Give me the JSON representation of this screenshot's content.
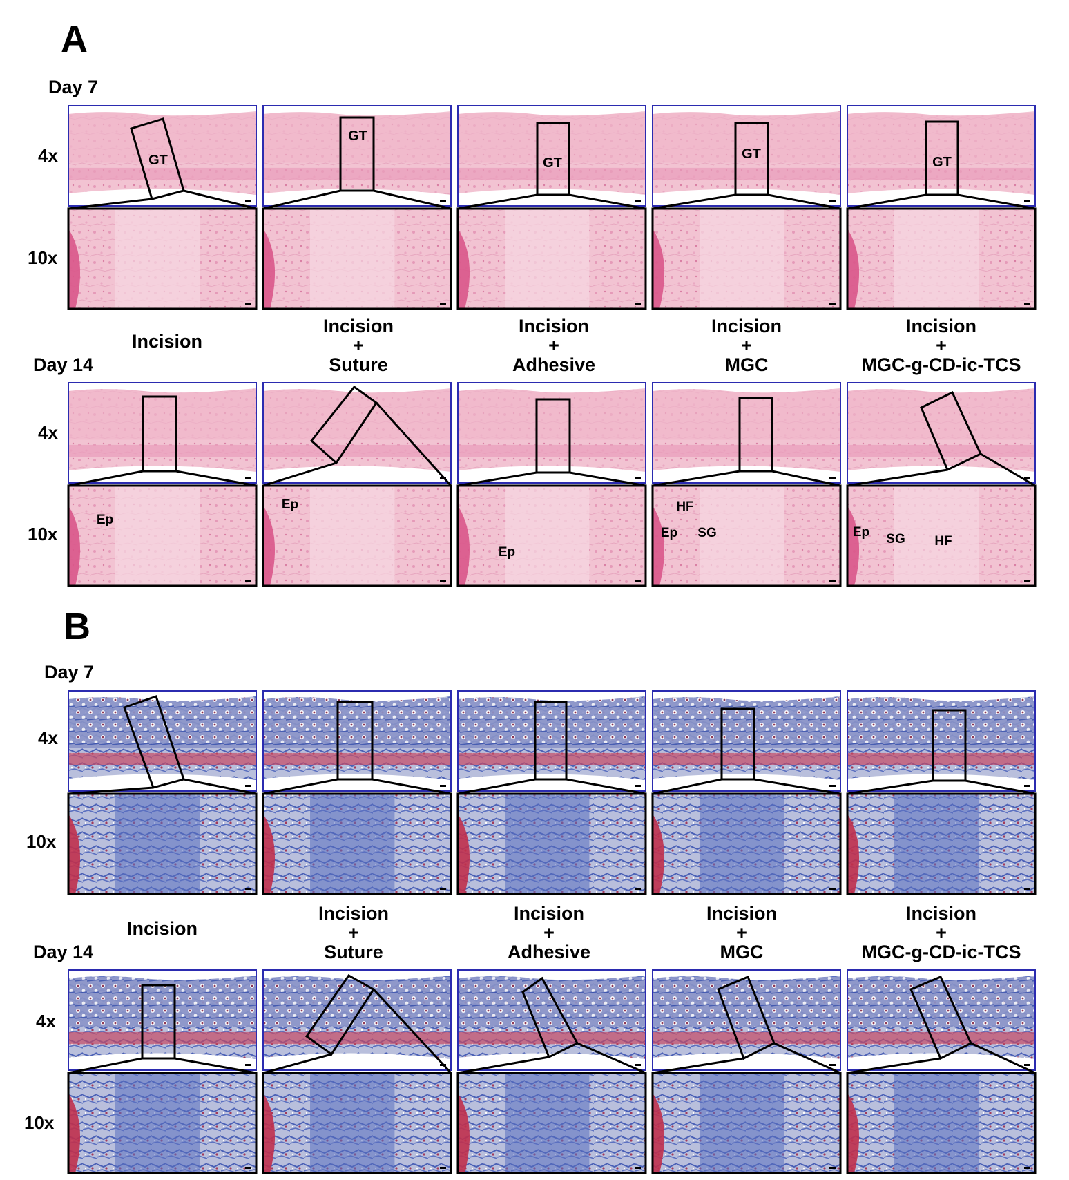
{
  "panels": [
    {
      "letter": "A",
      "stain": "he",
      "day7": "Day 7",
      "day14": "Day 14",
      "mag_low": "4x",
      "mag_high": "10x",
      "groups": [
        {
          "line1": "Incision",
          "line2": "",
          "line3": ""
        },
        {
          "line1": "Incision",
          "line2": "+",
          "line3": "Suture"
        },
        {
          "line1": "Incision",
          "line2": "+",
          "line3": "Adhesive"
        },
        {
          "line1": "Incision",
          "line2": "+",
          "line3": "MGC"
        },
        {
          "line1": "Incision",
          "line2": "+",
          "line3": "MGC-g-CD-ic-TCS"
        }
      ],
      "labels_day7_4x": [
        "GT",
        "GT",
        "GT",
        "GT",
        "GT"
      ],
      "labels_day14_10x": [
        [
          "Ep"
        ],
        [
          "Ep"
        ],
        [
          "Ep"
        ],
        [
          "HF",
          "Ep",
          "SG"
        ],
        [
          "Ep",
          "SG",
          "HF"
        ]
      ]
    },
    {
      "letter": "B",
      "stain": "mt",
      "day7": "Day 7",
      "day14": "Day 14",
      "mag_low": "4x",
      "mag_high": "10x",
      "groups": [
        {
          "line1": "Incision",
          "line2": "",
          "line3": ""
        },
        {
          "line1": "Incision",
          "line2": "+",
          "line3": "Suture"
        },
        {
          "line1": "Incision",
          "line2": "+",
          "line3": "Adhesive"
        },
        {
          "line1": "Incision",
          "line2": "+",
          "line3": "MGC"
        },
        {
          "line1": "Incision",
          "line2": "+",
          "line3": "MGC-g-CD-ic-TCS"
        }
      ]
    }
  ],
  "colors": {
    "frame_low": "#2b2bb0",
    "frame_high": "#000000",
    "he_bg": "#f2c3d2",
    "he_dark": "#d9568a",
    "mt_bg": "#c9cde0",
    "mt_blue": "#3f57b0",
    "mt_red": "#c0304c"
  }
}
